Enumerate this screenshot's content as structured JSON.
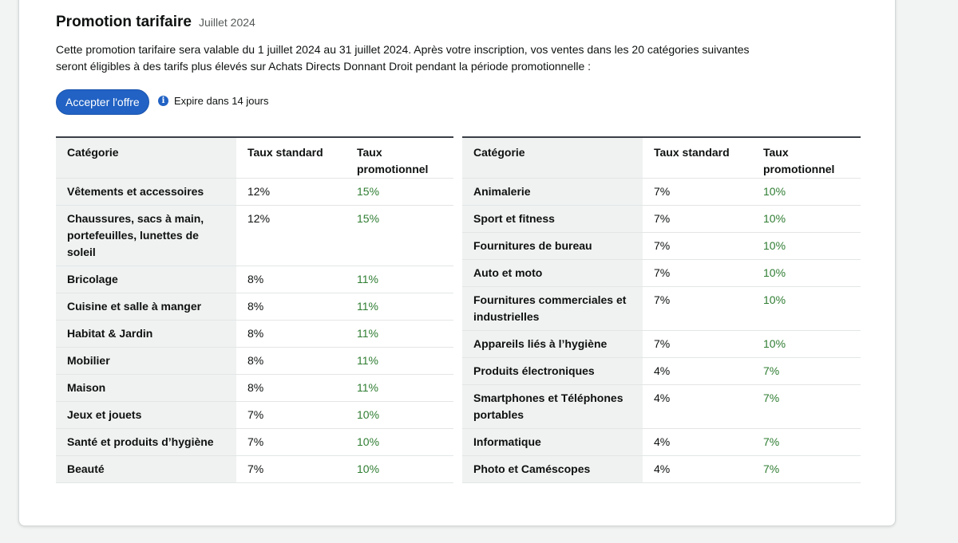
{
  "header": {
    "title": "Promotion tarifaire",
    "period": "Juillet 2024"
  },
  "description": "Cette promotion tarifaire sera valable du 1 juillet 2024 au 31 juillet 2024. Après votre inscription, vos ventes dans les 20 catégories suivantes seront éligibles à des tarifs plus élevés sur Achats Directs Donnant Droit pendant la période promotionnelle :",
  "actions": {
    "accept_label": "Accepter l'offre",
    "expire_text": "Expire dans 14 jours",
    "info_icon": "info-icon"
  },
  "colors": {
    "accent": "#2162c4",
    "promo": "#2f7d32"
  },
  "tables": {
    "headers": {
      "category": "Catégorie",
      "standard": "Taux standard",
      "promo": "Taux promotionnel"
    },
    "left": [
      {
        "category": "Vêtements et accessoires",
        "standard": "12%",
        "promo": "15%"
      },
      {
        "category": "Chaussures, sacs à main, portefeuilles, lunettes de soleil",
        "standard": "12%",
        "promo": "15%"
      },
      {
        "category": "Bricolage",
        "standard": "8%",
        "promo": "11%"
      },
      {
        "category": "Cuisine et salle à manger",
        "standard": "8%",
        "promo": "11%"
      },
      {
        "category": "Habitat & Jardin",
        "standard": "8%",
        "promo": "11%"
      },
      {
        "category": "Mobilier",
        "standard": "8%",
        "promo": "11%"
      },
      {
        "category": "Maison",
        "standard": "8%",
        "promo": "11%"
      },
      {
        "category": "Jeux et jouets",
        "standard": "7%",
        "promo": "10%"
      },
      {
        "category": "Santé et produits d’hygiène",
        "standard": "7%",
        "promo": "10%"
      },
      {
        "category": "Beauté",
        "standard": "7%",
        "promo": "10%"
      }
    ],
    "right": [
      {
        "category": "Animalerie",
        "standard": "7%",
        "promo": "10%"
      },
      {
        "category": "Sport et fitness",
        "standard": "7%",
        "promo": "10%"
      },
      {
        "category": "Fournitures de bureau",
        "standard": "7%",
        "promo": "10%"
      },
      {
        "category": "Auto et moto",
        "standard": "7%",
        "promo": "10%"
      },
      {
        "category": "Fournitures commerciales et industrielles",
        "standard": "7%",
        "promo": "10%"
      },
      {
        "category": "Appareils liés à l’hygiène",
        "standard": "7%",
        "promo": "10%"
      },
      {
        "category": "Produits électroniques",
        "standard": "4%",
        "promo": "7%"
      },
      {
        "category": "Smartphones et Téléphones portables",
        "standard": "4%",
        "promo": "7%"
      },
      {
        "category": "Informatique",
        "standard": "4%",
        "promo": "7%"
      },
      {
        "category": "Photo et Caméscopes",
        "standard": "4%",
        "promo": "7%"
      }
    ]
  }
}
